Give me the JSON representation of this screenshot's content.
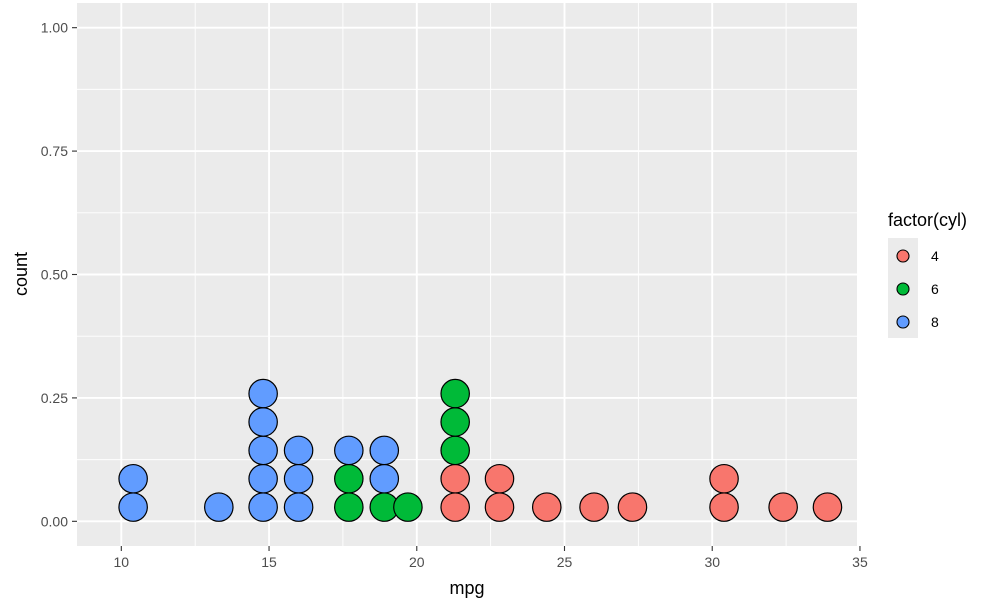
{
  "chart_data": {
    "type": "scatter",
    "subtype": "dotplot",
    "title": "",
    "xlabel": "mpg",
    "ylabel": "count",
    "xlim": [
      8.5,
      34.9
    ],
    "ylim": [
      -0.05,
      1.05
    ],
    "x_ticks": [
      10,
      15,
      20,
      25,
      30,
      35
    ],
    "y_ticks": [
      0.0,
      0.25,
      0.5,
      0.75,
      1.0
    ],
    "x_tick_labels": [
      "10",
      "15",
      "20",
      "25",
      "30",
      "35"
    ],
    "y_tick_labels": [
      "0.00",
      "0.25",
      "0.50",
      "0.75",
      "1.00"
    ],
    "grid": true,
    "panel_background": "#EBEBEB",
    "grid_color": "#FFFFFF",
    "dot_outline": "#000000",
    "legend": {
      "title": "factor(cyl)",
      "position": "right",
      "entries": [
        {
          "label": "4",
          "color": "#F8766D"
        },
        {
          "label": "6",
          "color": "#00BA38"
        },
        {
          "label": "8",
          "color": "#619CFF"
        }
      ]
    },
    "stacks": [
      {
        "x": 10.4,
        "groups": [
          "8",
          "8"
        ]
      },
      {
        "x": 13.3,
        "groups": [
          "8"
        ]
      },
      {
        "x": 14.8,
        "groups": [
          "8",
          "8",
          "8",
          "8",
          "8"
        ]
      },
      {
        "x": 16.0,
        "groups": [
          "8",
          "8",
          "8"
        ]
      },
      {
        "x": 17.7,
        "groups": [
          "6",
          "6",
          "8"
        ]
      },
      {
        "x": 18.9,
        "groups": [
          "6",
          "8",
          "8"
        ]
      },
      {
        "x": 19.7,
        "groups": [
          "6"
        ]
      },
      {
        "x": 21.3,
        "groups": [
          "4",
          "4",
          "6",
          "6",
          "6"
        ]
      },
      {
        "x": 22.8,
        "groups": [
          "4",
          "4"
        ]
      },
      {
        "x": 24.4,
        "groups": [
          "4"
        ]
      },
      {
        "x": 26.0,
        "groups": [
          "4"
        ]
      },
      {
        "x": 27.3,
        "groups": [
          "4"
        ]
      },
      {
        "x": 30.4,
        "groups": [
          "4",
          "4"
        ]
      },
      {
        "x": 32.4,
        "groups": [
          "4"
        ]
      },
      {
        "x": 33.9,
        "groups": [
          "4"
        ]
      }
    ],
    "dot_step_count": 0.0575
  }
}
